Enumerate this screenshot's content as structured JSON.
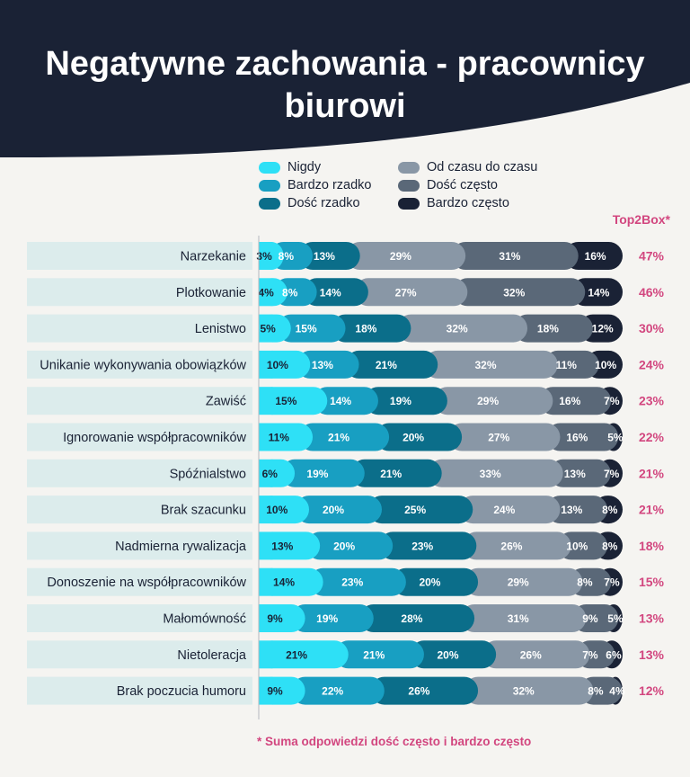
{
  "title": "Negatywne zachowania - pracownicy biurowi",
  "colors": {
    "header_bg": "#1a2235",
    "label_bg": "#dcecec",
    "accent": "#d2467f",
    "categories": [
      "#2ee0f6",
      "#189fc2",
      "#0b6e8a",
      "#8997a6",
      "#5a6878",
      "#1a2235"
    ]
  },
  "top2box_header": "Top2Box*",
  "footnote": "* Suma odpowiedzi dość często i bardzo często",
  "chart_data": {
    "type": "bar",
    "orientation": "horizontal",
    "stacked": true,
    "legend_position": "top",
    "value_unit": "%",
    "categories": [
      "Narzekanie",
      "Plotkowanie",
      "Lenistwo",
      "Unikanie wykonywania obowiązków",
      "Zawiść",
      "Ignorowanie współpracowników",
      "Spóźnialstwo",
      "Brak szacunku",
      "Nadmierna rywalizacja",
      "Donoszenie na współpracowników",
      "Małomówność",
      "Nietoleracja",
      "Brak poczucia humoru"
    ],
    "series": [
      {
        "name": "Nigdy",
        "values": [
          3,
          4,
          5,
          10,
          15,
          11,
          6,
          10,
          13,
          14,
          9,
          21,
          9
        ]
      },
      {
        "name": "Bardzo rzadko",
        "values": [
          8,
          8,
          15,
          13,
          14,
          21,
          19,
          20,
          20,
          23,
          19,
          21,
          22
        ]
      },
      {
        "name": "Dość rzadko",
        "values": [
          13,
          14,
          18,
          21,
          19,
          20,
          21,
          25,
          23,
          20,
          28,
          20,
          26
        ]
      },
      {
        "name": "Od czasu do czasu",
        "values": [
          29,
          27,
          32,
          32,
          29,
          27,
          33,
          24,
          26,
          29,
          31,
          26,
          32
        ]
      },
      {
        "name": "Dość często",
        "values": [
          31,
          32,
          18,
          11,
          16,
          16,
          13,
          13,
          10,
          8,
          9,
          7,
          8
        ]
      },
      {
        "name": "Bardzo często",
        "values": [
          16,
          14,
          12,
          10,
          7,
          5,
          7,
          8,
          8,
          7,
          5,
          6,
          4
        ]
      }
    ],
    "top2box": [
      47,
      46,
      30,
      24,
      23,
      22,
      21,
      21,
      18,
      15,
      13,
      13,
      12
    ]
  }
}
